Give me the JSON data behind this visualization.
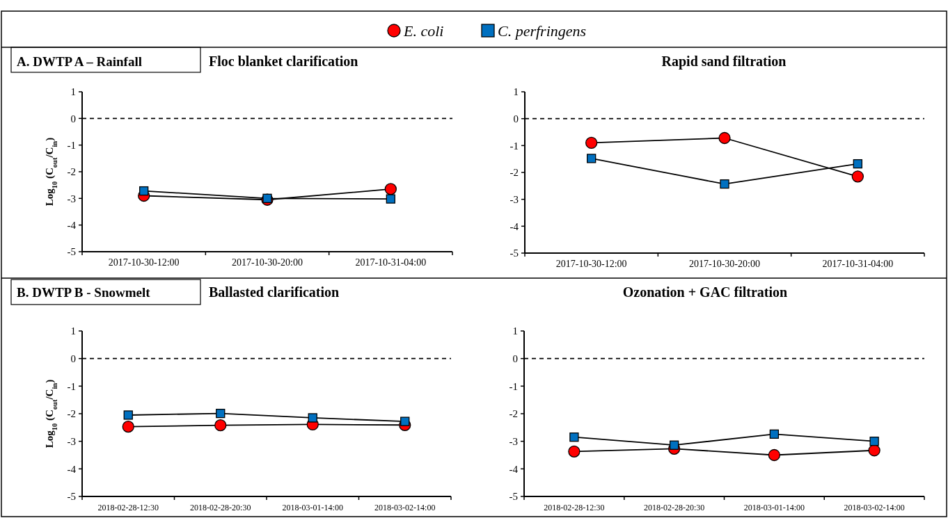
{
  "chart_data": [
    {
      "type": "line",
      "title": "Floc blanket clarification",
      "subtitle": "A. DWTP A – Rainfall",
      "ylabel": "Log$_{10}$ (C$_{out}$/C$_{in}$)",
      "categories": [
        "2017-10-30-12:00",
        "2017-10-30-20:00",
        "2017-10-31-04:00"
      ],
      "legend": "top",
      "line_style": "solid",
      "ylim": [
        -5,
        1
      ],
      "yticks": [
        -5,
        -4,
        -3,
        -2,
        -1,
        0,
        1
      ],
      "ref_lines": [
        {
          "axis": "y",
          "value": 0,
          "line_style": "dashed"
        }
      ],
      "series": [
        {
          "name": "E. coli",
          "color": "#ff0000",
          "marker": "circle",
          "values": [
            -2.9,
            -3.05,
            -2.65
          ]
        },
        {
          "name": "C. perfringens",
          "color": "#0070c0",
          "marker": "square",
          "values": [
            -2.72,
            -3.0,
            -3.02
          ]
        }
      ]
    },
    {
      "type": "line",
      "title": "Rapid sand filtration",
      "categories": [
        "2017-10-30-12:00",
        "2017-10-30-20:00",
        "2017-10-31-04:00"
      ],
      "line_style": "solid",
      "ylim": [
        -5,
        1
      ],
      "yticks": [
        -5,
        -4,
        -3,
        -2,
        -1,
        0,
        1
      ],
      "ref_lines": [
        {
          "axis": "y",
          "value": 0,
          "line_style": "dashed"
        }
      ],
      "series": [
        {
          "color": "#ff0000",
          "marker": "circle",
          "values": [
            -0.9,
            -0.72,
            -2.15
          ]
        },
        {
          "color": "#0070c0",
          "marker": "square",
          "values": [
            -1.48,
            -2.43,
            -1.68
          ]
        }
      ]
    },
    {
      "type": "line",
      "title": "Ballasted clarification",
      "subtitle": "B. DWTP B - Snowmelt",
      "ylabel": "Log$_{10}$ (C$_{out}$/C$_{in}$)",
      "categories": [
        "2018-02-28-12:30",
        "2018-02-28-20:30",
        "2018-03-01-14:00",
        "2018-03-02-14:00"
      ],
      "line_style": "solid",
      "ylim": [
        -5,
        1
      ],
      "yticks": [
        -5,
        -4,
        -3,
        -2,
        -1,
        0,
        1
      ],
      "ref_lines": [
        {
          "axis": "y",
          "value": 0,
          "line_style": "dashed"
        }
      ],
      "series": [
        {
          "color": "#ff0000",
          "marker": "circle",
          "values": [
            -2.47,
            -2.42,
            -2.39,
            -2.41
          ]
        },
        {
          "color": "#0070c0",
          "marker": "square",
          "values": [
            -2.05,
            -1.99,
            -2.15,
            -2.28
          ]
        }
      ]
    },
    {
      "type": "line",
      "title": "Ozonation + GAC filtration",
      "categories": [
        "2018-02-28-12:30",
        "2018-02-28-20:30",
        "2018-03-01-14:00",
        "2018-03-02-14:00"
      ],
      "line_style": "solid",
      "ylim": [
        -5,
        1
      ],
      "yticks": [
        -5,
        -4,
        -3,
        -2,
        -1,
        0,
        1
      ],
      "ref_lines": [
        {
          "axis": "y",
          "value": 0,
          "line_style": "dashed"
        }
      ],
      "series": [
        {
          "color": "#ff0000",
          "marker": "circle",
          "values": [
            -3.37,
            -3.27,
            -3.5,
            -3.33
          ]
        },
        {
          "color": "#0070c0",
          "marker": "square",
          "values": [
            -2.85,
            -3.14,
            -2.74,
            -3.0
          ]
        }
      ]
    }
  ]
}
